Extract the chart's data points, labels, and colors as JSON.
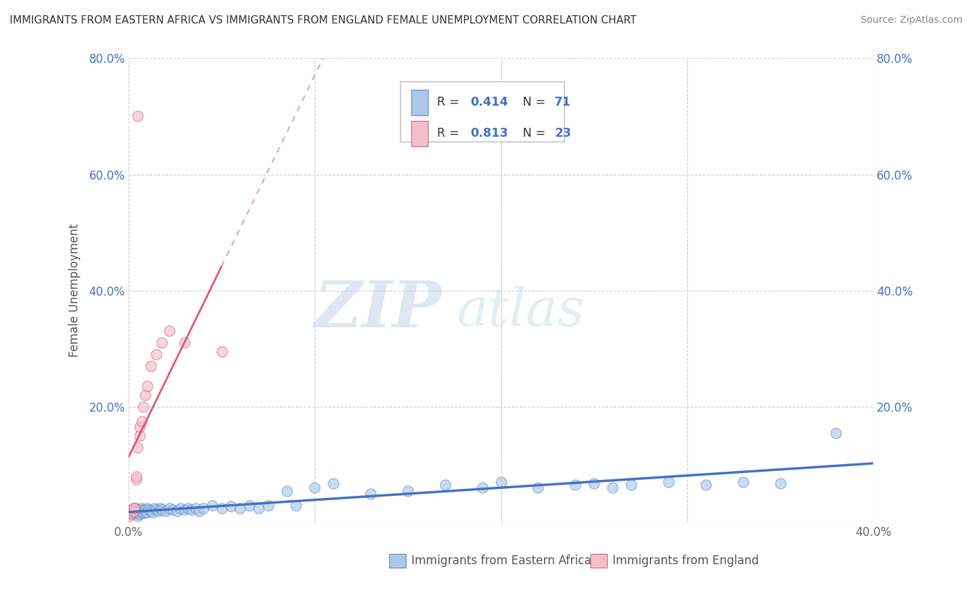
{
  "title": "IMMIGRANTS FROM EASTERN AFRICA VS IMMIGRANTS FROM ENGLAND FEMALE UNEMPLOYMENT CORRELATION CHART",
  "source": "Source: ZipAtlas.com",
  "xlabel_bottom": [
    "Immigrants from Eastern Africa",
    "Immigrants from England"
  ],
  "ylabel": "Female Unemployment",
  "watermark_zip": "ZIP",
  "watermark_atlas": "atlas",
  "xlim": [
    0.0,
    0.4
  ],
  "ylim": [
    0.0,
    0.8
  ],
  "xtick_vals": [
    0.0,
    0.1,
    0.2,
    0.3,
    0.4
  ],
  "xtick_labels": [
    "0.0%",
    "",
    "",
    "",
    "40.0%"
  ],
  "ytick_vals": [
    0.0,
    0.2,
    0.4,
    0.6,
    0.8
  ],
  "ytick_labels": [
    "",
    "20.0%",
    "40.0%",
    "60.0%",
    "80.0%"
  ],
  "blue_fill": "#adc8e8",
  "blue_edge": "#5b8fc9",
  "pink_fill": "#f2bfcc",
  "pink_edge": "#d96080",
  "blue_line_color": "#4472c4",
  "pink_line_color": "#e05575",
  "pink_dash_color": "#e8a0b0",
  "legend_text_color": "#4472c4",
  "legend_R1": "0.414",
  "legend_N1": "71",
  "legend_R2": "0.813",
  "legend_N2": "23",
  "background_color": "#ffffff",
  "grid_color": "#cccccc",
  "blue_scatter_x": [
    0.0005,
    0.001,
    0.0015,
    0.002,
    0.002,
    0.0025,
    0.003,
    0.003,
    0.003,
    0.0035,
    0.004,
    0.004,
    0.004,
    0.005,
    0.005,
    0.005,
    0.006,
    0.006,
    0.007,
    0.007,
    0.008,
    0.008,
    0.009,
    0.009,
    0.01,
    0.01,
    0.011,
    0.012,
    0.013,
    0.014,
    0.015,
    0.016,
    0.017,
    0.018,
    0.02,
    0.022,
    0.024,
    0.026,
    0.028,
    0.03,
    0.032,
    0.034,
    0.036,
    0.038,
    0.04,
    0.045,
    0.05,
    0.055,
    0.06,
    0.065,
    0.07,
    0.075,
    0.085,
    0.09,
    0.1,
    0.11,
    0.13,
    0.15,
    0.17,
    0.19,
    0.2,
    0.22,
    0.24,
    0.25,
    0.26,
    0.27,
    0.29,
    0.31,
    0.33,
    0.35,
    0.38
  ],
  "blue_scatter_y": [
    0.015,
    0.02,
    0.018,
    0.022,
    0.016,
    0.02,
    0.018,
    0.025,
    0.015,
    0.02,
    0.018,
    0.025,
    0.015,
    0.022,
    0.018,
    0.012,
    0.02,
    0.015,
    0.025,
    0.018,
    0.022,
    0.016,
    0.018,
    0.022,
    0.025,
    0.018,
    0.022,
    0.02,
    0.018,
    0.025,
    0.022,
    0.02,
    0.025,
    0.022,
    0.02,
    0.025,
    0.022,
    0.02,
    0.025,
    0.022,
    0.025,
    0.022,
    0.025,
    0.02,
    0.025,
    0.03,
    0.025,
    0.028,
    0.025,
    0.03,
    0.025,
    0.03,
    0.055,
    0.03,
    0.06,
    0.068,
    0.05,
    0.055,
    0.065,
    0.06,
    0.07,
    0.06,
    0.065,
    0.068,
    0.06,
    0.065,
    0.07,
    0.065,
    0.07,
    0.068,
    0.155
  ],
  "pink_scatter_x": [
    0.0005,
    0.001,
    0.0015,
    0.002,
    0.0025,
    0.003,
    0.003,
    0.004,
    0.004,
    0.005,
    0.005,
    0.006,
    0.006,
    0.007,
    0.008,
    0.009,
    0.01,
    0.012,
    0.015,
    0.018,
    0.022,
    0.03,
    0.05
  ],
  "pink_scatter_y": [
    0.012,
    0.015,
    0.018,
    0.02,
    0.025,
    0.02,
    0.025,
    0.075,
    0.08,
    0.7,
    0.13,
    0.15,
    0.165,
    0.175,
    0.2,
    0.22,
    0.235,
    0.27,
    0.29,
    0.31,
    0.33,
    0.31,
    0.295
  ]
}
